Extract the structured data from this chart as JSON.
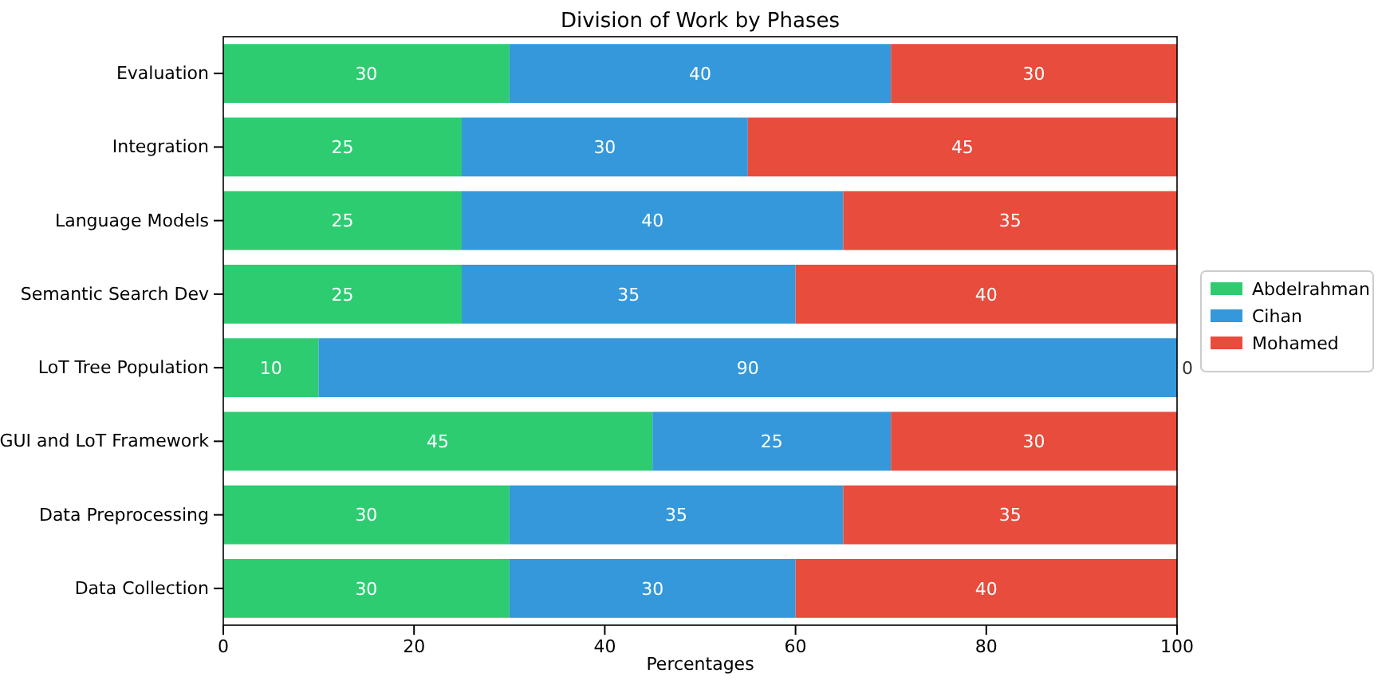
{
  "chart_data": {
    "type": "bar",
    "orientation": "horizontal",
    "stacked": true,
    "title": "Division of Work by Phases",
    "xlabel": "Percentages",
    "categories": [
      "Evaluation",
      "Integration",
      "Language Models",
      "Semantic Search Dev",
      "LoT Tree Population",
      "GUI and LoT Framework",
      "Data Preprocessing",
      "Data Collection"
    ],
    "series": [
      {
        "name": "Abdelrahman",
        "color": "#2ecc71",
        "values": [
          30,
          25,
          25,
          25,
          10,
          45,
          30,
          30
        ]
      },
      {
        "name": "Cihan",
        "color": "#3498db",
        "values": [
          40,
          30,
          40,
          35,
          90,
          25,
          35,
          30
        ]
      },
      {
        "name": "Mohamed",
        "color": "#e74c3c",
        "values": [
          30,
          45,
          35,
          40,
          0,
          30,
          35,
          40
        ]
      }
    ],
    "xlim": [
      0,
      100
    ],
    "xticks": [
      0,
      20,
      40,
      60,
      80,
      100
    ],
    "data_labels": true,
    "legend": "right",
    "grid": false
  }
}
